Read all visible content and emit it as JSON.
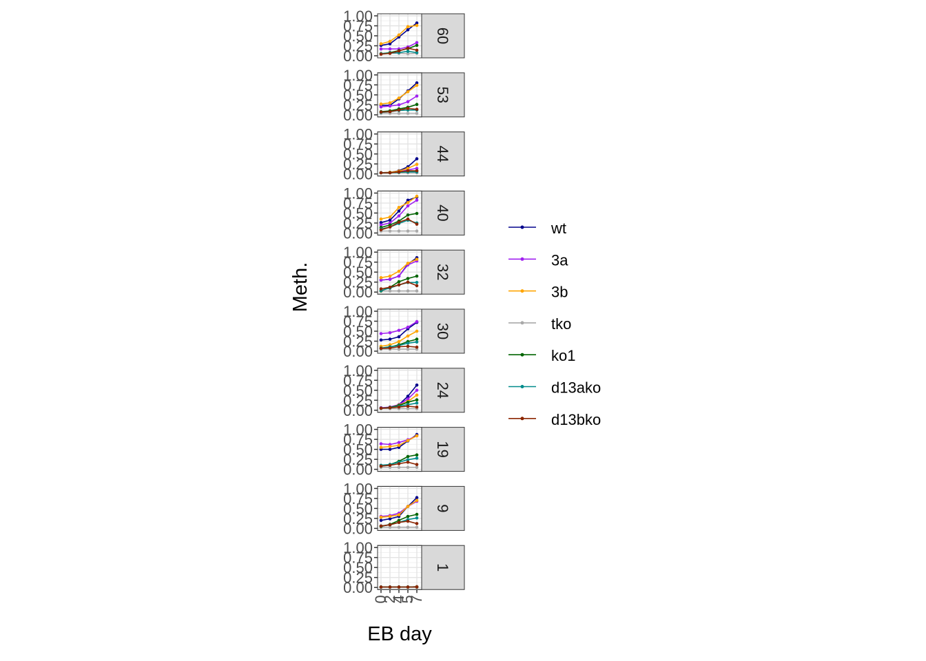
{
  "chart_data": {
    "type": "line",
    "xlabel": "EB day",
    "ylabel": "Meth.",
    "x": [
      "0",
      "2",
      "4",
      "5",
      "7"
    ],
    "ylim": [
      0,
      1
    ],
    "yticks": [
      "0.00",
      "0.25",
      "0.50",
      "0.75",
      "1.00"
    ],
    "facet_order": [
      "60",
      "53",
      "44",
      "40",
      "32",
      "30",
      "24",
      "19",
      "9",
      "1"
    ],
    "series": [
      {
        "name": "wt",
        "color": "#00008B"
      },
      {
        "name": "3a",
        "color": "#A020F0"
      },
      {
        "name": "3b",
        "color": "#FFA500"
      },
      {
        "name": "tko",
        "color": "#A9A9A9"
      },
      {
        "name": "ko1",
        "color": "#006400"
      },
      {
        "name": "d13ako",
        "color": "#008B8B"
      },
      {
        "name": "d13bko",
        "color": "#8B2500"
      }
    ],
    "grid": true,
    "legend_position": "right",
    "facets": [
      {
        "label": "60",
        "values": {
          "wt": [
            0.26,
            0.3,
            0.47,
            0.65,
            0.82
          ],
          "3a": [
            0.17,
            0.17,
            0.17,
            0.22,
            0.33
          ],
          "3b": [
            0.3,
            0.36,
            0.52,
            0.73,
            0.76
          ],
          "tko": [
            0.06,
            0.06,
            0.06,
            0.05,
            0.06
          ],
          "ko1": [
            0.05,
            0.08,
            0.13,
            0.18,
            0.26
          ],
          "d13ako": [
            0.05,
            0.07,
            0.08,
            0.11,
            0.08
          ],
          "d13bko": [
            0.04,
            0.06,
            0.12,
            0.19,
            0.14
          ]
        }
      },
      {
        "label": "53",
        "values": {
          "wt": [
            0.24,
            0.24,
            0.4,
            0.6,
            0.8
          ],
          "3a": [
            0.2,
            0.22,
            0.25,
            0.33,
            0.47
          ],
          "3b": [
            0.27,
            0.3,
            0.42,
            0.58,
            0.74
          ],
          "tko": [
            0.04,
            0.04,
            0.04,
            0.04,
            0.04
          ],
          "ko1": [
            0.08,
            0.1,
            0.15,
            0.19,
            0.26
          ],
          "d13ako": [
            0.06,
            0.08,
            0.11,
            0.12,
            0.12
          ],
          "d13bko": [
            0.07,
            0.08,
            0.12,
            0.16,
            0.14
          ]
        }
      },
      {
        "label": "44",
        "values": {
          "wt": [
            0.03,
            0.04,
            0.08,
            0.18,
            0.38
          ],
          "3a": [
            0.03,
            0.03,
            0.05,
            0.1,
            0.14
          ],
          "3b": [
            0.03,
            0.04,
            0.07,
            0.14,
            0.24
          ],
          "tko": [
            0.03,
            0.03,
            0.03,
            0.03,
            0.03
          ],
          "ko1": [
            0.03,
            0.03,
            0.04,
            0.06,
            0.08
          ],
          "d13ako": [
            0.03,
            0.03,
            0.04,
            0.05,
            0.05
          ],
          "d13bko": [
            0.03,
            0.03,
            0.05,
            0.08,
            0.08
          ]
        }
      },
      {
        "label": "40",
        "values": {
          "wt": [
            0.26,
            0.32,
            0.55,
            0.82,
            0.9
          ],
          "3a": [
            0.2,
            0.25,
            0.43,
            0.68,
            0.82
          ],
          "3b": [
            0.35,
            0.4,
            0.64,
            0.76,
            0.92
          ],
          "tko": [
            0.05,
            0.05,
            0.05,
            0.05,
            0.05
          ],
          "ko1": [
            0.14,
            0.2,
            0.3,
            0.45,
            0.49
          ],
          "d13ako": [
            0.1,
            0.15,
            0.24,
            0.32,
            0.25
          ],
          "d13bko": [
            0.08,
            0.15,
            0.27,
            0.35,
            0.22
          ]
        }
      },
      {
        "label": "32",
        "values": {
          "wt": [
            0.3,
            0.32,
            0.4,
            0.7,
            0.86
          ],
          "3a": [
            0.3,
            0.32,
            0.4,
            0.68,
            0.78
          ],
          "3b": [
            0.36,
            0.4,
            0.52,
            0.72,
            0.82
          ],
          "tko": [
            0.03,
            0.03,
            0.03,
            0.03,
            0.03
          ],
          "ko1": [
            0.03,
            0.12,
            0.26,
            0.34,
            0.4
          ],
          "d13ako": [
            0.04,
            0.1,
            0.18,
            0.24,
            0.24
          ],
          "d13bko": [
            0.08,
            0.12,
            0.18,
            0.25,
            0.16
          ]
        }
      },
      {
        "label": "30",
        "values": {
          "wt": [
            0.28,
            0.3,
            0.36,
            0.56,
            0.72
          ],
          "3a": [
            0.44,
            0.46,
            0.52,
            0.6,
            0.74
          ],
          "3b": [
            0.12,
            0.16,
            0.24,
            0.38,
            0.5
          ],
          "tko": [
            0.05,
            0.05,
            0.05,
            0.05,
            0.05
          ],
          "ko1": [
            0.07,
            0.1,
            0.16,
            0.24,
            0.3
          ],
          "d13ako": [
            0.08,
            0.11,
            0.14,
            0.2,
            0.23
          ],
          "d13bko": [
            0.07,
            0.08,
            0.11,
            0.12,
            0.1
          ]
        }
      },
      {
        "label": "24",
        "values": {
          "wt": [
            0.06,
            0.07,
            0.14,
            0.35,
            0.63
          ],
          "3a": [
            0.06,
            0.08,
            0.14,
            0.28,
            0.5
          ],
          "3b": [
            0.05,
            0.06,
            0.13,
            0.22,
            0.38
          ],
          "tko": [
            0.04,
            0.04,
            0.04,
            0.04,
            0.04
          ],
          "ko1": [
            0.05,
            0.07,
            0.12,
            0.2,
            0.26
          ],
          "d13ako": [
            0.05,
            0.06,
            0.1,
            0.14,
            0.18
          ],
          "d13bko": [
            0.05,
            0.06,
            0.08,
            0.1,
            0.08
          ]
        }
      },
      {
        "label": "19",
        "values": {
          "wt": [
            0.5,
            0.5,
            0.55,
            0.71,
            0.87
          ],
          "3a": [
            0.64,
            0.62,
            0.67,
            0.74,
            0.84
          ],
          "3b": [
            0.55,
            0.57,
            0.6,
            0.72,
            0.84
          ],
          "tko": [
            0.05,
            0.05,
            0.05,
            0.05,
            0.05
          ],
          "ko1": [
            0.08,
            0.12,
            0.2,
            0.32,
            0.36
          ],
          "d13ako": [
            0.1,
            0.12,
            0.18,
            0.24,
            0.28
          ],
          "d13bko": [
            0.08,
            0.1,
            0.14,
            0.18,
            0.12
          ]
        }
      },
      {
        "label": "9",
        "values": {
          "wt": [
            0.2,
            0.24,
            0.3,
            0.55,
            0.77
          ],
          "3a": [
            0.3,
            0.32,
            0.38,
            0.55,
            0.68
          ],
          "3b": [
            0.28,
            0.3,
            0.34,
            0.55,
            0.7
          ],
          "tko": [
            0.03,
            0.03,
            0.03,
            0.03,
            0.03
          ],
          "ko1": [
            0.05,
            0.1,
            0.2,
            0.3,
            0.35
          ],
          "d13ako": [
            0.06,
            0.09,
            0.15,
            0.22,
            0.26
          ],
          "d13bko": [
            0.06,
            0.09,
            0.15,
            0.18,
            0.12
          ]
        }
      },
      {
        "label": "1",
        "values": {
          "wt": [
            0.01,
            0.01,
            0.01,
            0.01,
            0.02
          ],
          "3a": [
            0.01,
            0.01,
            0.01,
            0.01,
            0.02
          ],
          "3b": [
            0.01,
            0.01,
            0.01,
            0.01,
            0.02
          ],
          "tko": [
            0.01,
            0.01,
            0.01,
            0.01,
            0.01
          ],
          "ko1": [
            0.01,
            0.01,
            0.01,
            0.01,
            0.01
          ],
          "d13ako": [
            0.01,
            0.01,
            0.01,
            0.01,
            0.01
          ],
          "d13bko": [
            0.01,
            0.01,
            0.01,
            0.01,
            0.01
          ]
        }
      }
    ]
  }
}
